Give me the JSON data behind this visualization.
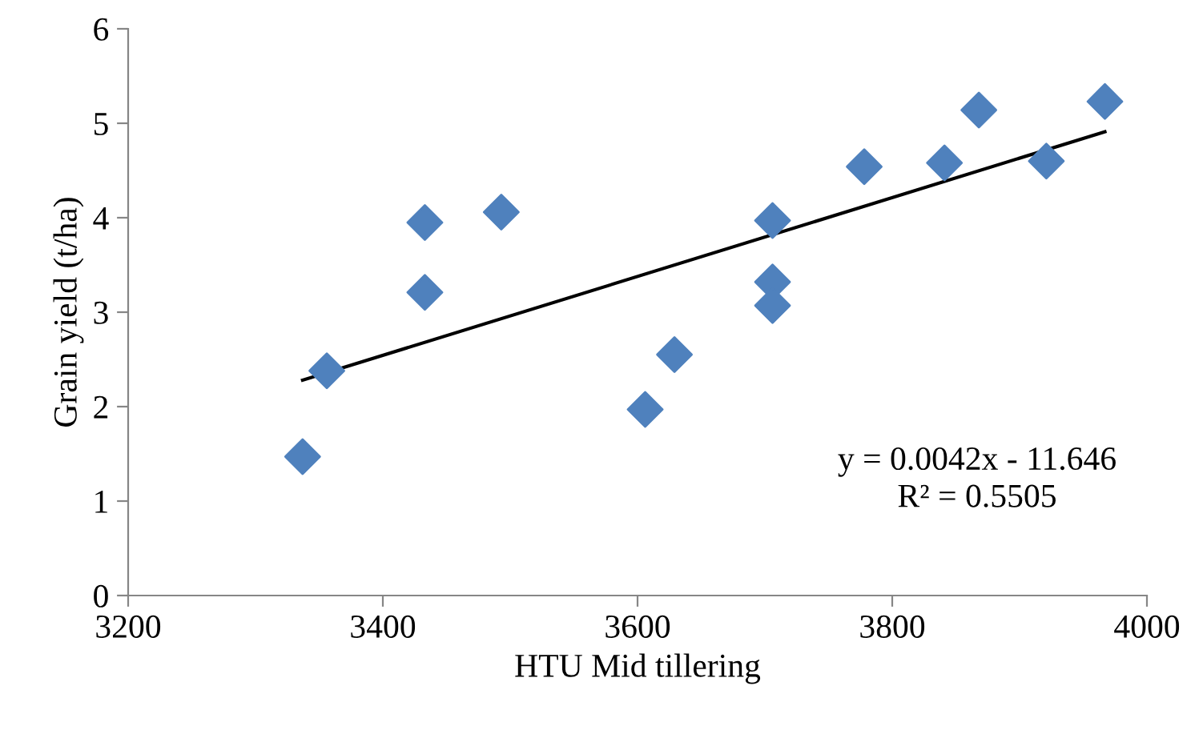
{
  "chart_data": {
    "type": "scatter",
    "xlabel": "HTU Mid tillering",
    "ylabel": "Grain yield (t/ha)",
    "series": [
      {
        "color": "#4f81bd",
        "marker": "diamond",
        "x": [
          3337,
          3356,
          3433,
          3433,
          3493,
          3606,
          3629,
          3706,
          3706,
          3706,
          3778,
          3841,
          3868,
          3921,
          3967
        ],
        "values": [
          1.47,
          2.38,
          3.95,
          3.21,
          4.06,
          1.97,
          2.55,
          3.97,
          3.32,
          3.07,
          4.54,
          4.58,
          5.14,
          4.6,
          5.23
        ]
      },
      {
        "type": "line",
        "color": "#000000",
        "marker": "none",
        "x": [
          3337,
          3967
        ],
        "values": [
          2.28,
          4.91
        ]
      }
    ],
    "annotations": [
      "y = 0.0042x - 11.646\nR² = 0.5505"
    ],
    "xlim": [
      3200,
      4000
    ],
    "xticks": [
      3200,
      3400,
      3600,
      3800,
      4000
    ],
    "ylim": [
      0,
      6
    ],
    "yticks": [
      0,
      1,
      2,
      3,
      4,
      5,
      6
    ],
    "grid": false,
    "legend": false
  }
}
